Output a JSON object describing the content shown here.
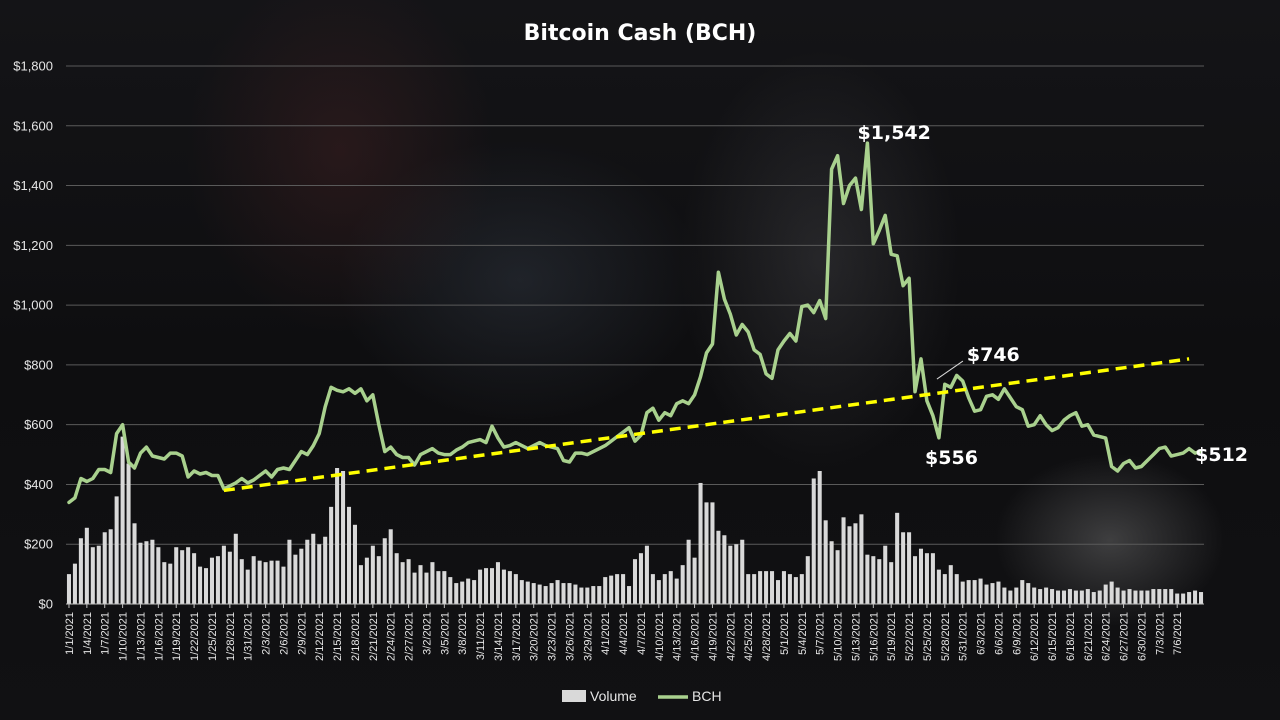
{
  "chart_data": {
    "type": "bar+line",
    "title": "Bitcoin Cash (BCH)",
    "ylim": [
      0,
      1800
    ],
    "y_ticks": [
      0,
      200,
      400,
      600,
      800,
      1000,
      1200,
      1400,
      1600,
      1800
    ],
    "y_tick_labels": [
      "$0",
      "$200",
      "$400",
      "$600",
      "$800",
      "$1,000",
      "$1,200",
      "$1,400",
      "$1,600",
      "$1,800"
    ],
    "x_start": "2021-01-01",
    "x_tick_labels": [
      "1/1/2021",
      "1/4/2021",
      "1/7/2021",
      "1/10/2021",
      "1/13/2021",
      "1/16/2021",
      "1/19/2021",
      "1/22/2021",
      "1/25/2021",
      "1/28/2021",
      "1/31/2021",
      "2/3/2021",
      "2/6/2021",
      "2/9/2021",
      "2/12/2021",
      "2/15/2021",
      "2/18/2021",
      "2/21/2021",
      "2/24/2021",
      "2/27/2021",
      "3/2/2021",
      "3/5/2021",
      "3/8/2021",
      "3/11/2021",
      "3/14/2021",
      "3/17/2021",
      "3/20/2021",
      "3/23/2021",
      "3/26/2021",
      "3/29/2021",
      "4/1/2021",
      "4/4/2021",
      "4/7/2021",
      "4/10/2021",
      "4/13/2021",
      "4/16/2021",
      "4/19/2021",
      "4/22/2021",
      "4/25/2021",
      "4/28/2021",
      "5/1/2021",
      "5/4/2021",
      "5/7/2021",
      "5/10/2021",
      "5/13/2021",
      "5/16/2021",
      "5/19/2021",
      "5/22/2021",
      "5/25/2021",
      "5/28/2021",
      "5/31/2021",
      "6/3/2021",
      "6/6/2021",
      "6/9/2021",
      "6/12/2021",
      "6/15/2021",
      "6/18/2021",
      "6/21/2021",
      "6/24/2021",
      "6/27/2021",
      "6/30/2021",
      "7/3/2021",
      "7/6/2021"
    ],
    "series": [
      {
        "name": "Volume",
        "kind": "bar",
        "color": "#d9d9d9",
        "values": [
          100,
          135,
          220,
          255,
          190,
          195,
          240,
          250,
          360,
          560,
          470,
          270,
          205,
          210,
          215,
          190,
          140,
          135,
          190,
          180,
          190,
          170,
          125,
          120,
          155,
          160,
          195,
          175,
          235,
          150,
          115,
          160,
          145,
          140,
          145,
          145,
          125,
          215,
          165,
          185,
          215,
          235,
          200,
          225,
          325,
          455,
          445,
          325,
          265,
          130,
          155,
          195,
          160,
          220,
          250,
          170,
          140,
          150,
          105,
          130,
          105,
          140,
          110,
          110,
          90,
          70,
          75,
          85,
          80,
          115,
          120,
          120,
          140,
          115,
          110,
          100,
          80,
          75,
          70,
          65,
          60,
          70,
          80,
          70,
          70,
          65,
          55,
          55,
          60,
          60,
          90,
          95,
          100,
          100,
          60,
          150,
          170,
          195,
          100,
          80,
          100,
          110,
          85,
          130,
          215,
          155,
          405,
          340,
          340,
          245,
          230,
          195,
          200,
          215,
          100,
          100,
          110,
          110,
          110,
          80,
          110,
          100,
          90,
          100,
          160,
          420,
          445,
          280,
          210,
          180,
          290,
          260,
          270,
          300,
          165,
          160,
          150,
          195,
          140,
          305,
          240,
          240,
          160,
          185,
          170,
          170,
          115,
          100,
          130,
          100,
          75,
          80,
          80,
          85,
          65,
          70,
          75,
          55,
          45,
          55,
          80,
          70,
          55,
          50,
          55,
          50,
          45,
          45,
          50,
          45,
          45,
          50,
          40,
          45,
          65,
          75,
          55,
          45,
          50,
          45,
          45,
          45,
          50,
          50,
          50,
          50,
          35,
          35,
          40,
          45,
          40
        ],
        "bar_label": "Volume"
      },
      {
        "name": "BCH",
        "kind": "line",
        "color": "#a9d18e",
        "values": [
          340,
          355,
          420,
          410,
          420,
          450,
          450,
          440,
          570,
          600,
          475,
          455,
          505,
          525,
          495,
          490,
          485,
          505,
          505,
          495,
          425,
          445,
          435,
          440,
          430,
          430,
          385,
          395,
          405,
          420,
          405,
          415,
          430,
          445,
          425,
          450,
          455,
          450,
          480,
          510,
          500,
          530,
          570,
          660,
          725,
          715,
          710,
          720,
          705,
          720,
          680,
          700,
          600,
          510,
          525,
          500,
          490,
          490,
          465,
          500,
          510,
          520,
          505,
          500,
          500,
          515,
          525,
          540,
          545,
          550,
          540,
          595,
          555,
          525,
          530,
          540,
          530,
          520,
          530,
          540,
          530,
          525,
          520,
          480,
          475,
          505,
          505,
          500,
          510,
          520,
          530,
          545,
          560,
          575,
          590,
          545,
          565,
          640,
          655,
          615,
          640,
          630,
          670,
          680,
          670,
          700,
          760,
          840,
          870,
          1110,
          1020,
          970,
          900,
          935,
          910,
          850,
          835,
          770,
          755,
          850,
          880,
          905,
          880,
          995,
          1000,
          975,
          1015,
          955,
          1455,
          1500,
          1340,
          1400,
          1425,
          1320,
          1542,
          1205,
          1250,
          1300,
          1170,
          1165,
          1065,
          1090,
          710,
          820,
          680,
          630,
          556,
          735,
          725,
          765,
          746,
          690,
          645,
          650,
          695,
          700,
          685,
          720,
          690,
          660,
          650,
          595,
          600,
          630,
          600,
          580,
          590,
          615,
          630,
          640,
          595,
          600,
          565,
          560,
          555,
          460,
          445,
          470,
          480,
          455,
          460,
          480,
          500,
          520,
          525,
          495,
          500,
          505,
          520,
          505,
          512
        ]
      }
    ],
    "trendline": {
      "color": "#ffff00",
      "style": "dashed",
      "start": {
        "date": "2021-01-27",
        "value": 380
      },
      "end": {
        "date": "2021-07-08",
        "value": 820
      }
    },
    "annotations": [
      {
        "label": "$1,542",
        "date": "2021-05-11",
        "value": 1542
      },
      {
        "label": "$746",
        "date": "2021-05-26",
        "value": 746
      },
      {
        "label": "$556",
        "date": "2021-05-23",
        "value": 556
      },
      {
        "label": "$512",
        "date": "2021-07-07",
        "value": 512
      }
    ],
    "legend": {
      "position": "bottom",
      "items": [
        "Volume",
        "BCH"
      ]
    },
    "grid": "horizontal"
  }
}
